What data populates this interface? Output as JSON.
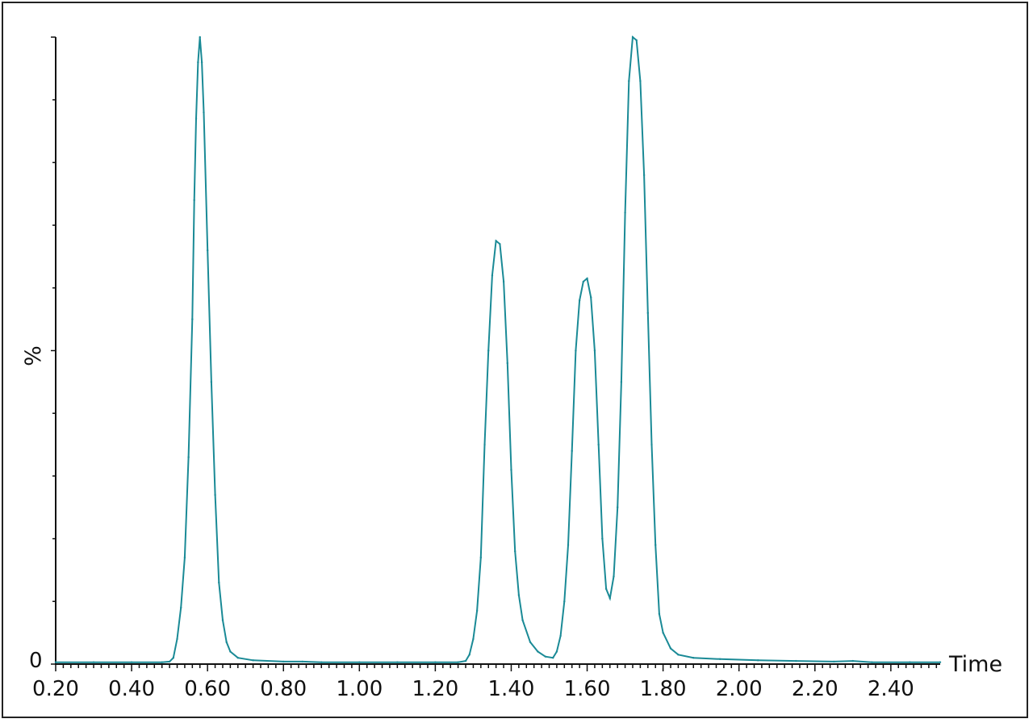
{
  "chart_data": {
    "type": "line",
    "title": "",
    "xlabel": "Time",
    "ylabel": "%",
    "y_zero_label": "0",
    "xlim": [
      0.2,
      2.53
    ],
    "ylim": [
      0,
      100
    ],
    "x_ticks": [
      "0.20",
      "0.40",
      "0.60",
      "0.80",
      "1.00",
      "1.20",
      "1.40",
      "1.60",
      "1.80",
      "2.00",
      "2.20",
      "2.40"
    ],
    "x_tick_values": [
      0.2,
      0.4,
      0.6,
      0.8,
      1.0,
      1.2,
      1.4,
      1.6,
      1.8,
      2.0,
      2.2,
      2.4
    ],
    "grid": false,
    "colors": {
      "line": "#1a8a96",
      "axis": "#111111"
    },
    "series": [
      {
        "values": [
          [
            0.2,
            0.3
          ],
          [
            0.3,
            0.3
          ],
          [
            0.4,
            0.3
          ],
          [
            0.48,
            0.3
          ],
          [
            0.5,
            0.4
          ],
          [
            0.51,
            1.0
          ],
          [
            0.52,
            4.0
          ],
          [
            0.53,
            9.0
          ],
          [
            0.54,
            17.0
          ],
          [
            0.55,
            33.0
          ],
          [
            0.56,
            55.0
          ],
          [
            0.565,
            74.0
          ],
          [
            0.57,
            87.0
          ],
          [
            0.575,
            96.0
          ],
          [
            0.58,
            100.0
          ],
          [
            0.585,
            96.0
          ],
          [
            0.59,
            88.0
          ],
          [
            0.6,
            66.0
          ],
          [
            0.61,
            45.0
          ],
          [
            0.62,
            27.0
          ],
          [
            0.63,
            13.0
          ],
          [
            0.64,
            7.0
          ],
          [
            0.65,
            3.5
          ],
          [
            0.66,
            2.0
          ],
          [
            0.68,
            1.0
          ],
          [
            0.72,
            0.6
          ],
          [
            0.8,
            0.4
          ],
          [
            0.85,
            0.4
          ],
          [
            0.9,
            0.3
          ],
          [
            1.0,
            0.3
          ],
          [
            1.1,
            0.3
          ],
          [
            1.2,
            0.3
          ],
          [
            1.26,
            0.3
          ],
          [
            1.28,
            0.5
          ],
          [
            1.29,
            1.5
          ],
          [
            1.3,
            4.0
          ],
          [
            1.31,
            8.5
          ],
          [
            1.32,
            17.0
          ],
          [
            1.33,
            35.0
          ],
          [
            1.34,
            50.0
          ],
          [
            1.35,
            62.0
          ],
          [
            1.36,
            67.5
          ],
          [
            1.37,
            67.0
          ],
          [
            1.38,
            61.0
          ],
          [
            1.39,
            48.0
          ],
          [
            1.4,
            31.0
          ],
          [
            1.41,
            18.0
          ],
          [
            1.42,
            11.0
          ],
          [
            1.43,
            7.0
          ],
          [
            1.45,
            3.5
          ],
          [
            1.47,
            2.0
          ],
          [
            1.49,
            1.2
          ],
          [
            1.51,
            1.0
          ],
          [
            1.52,
            2.0
          ],
          [
            1.53,
            4.5
          ],
          [
            1.54,
            10.0
          ],
          [
            1.55,
            19.0
          ],
          [
            1.56,
            34.0
          ],
          [
            1.57,
            50.0
          ],
          [
            1.58,
            58.0
          ],
          [
            1.59,
            61.0
          ],
          [
            1.6,
            61.5
          ],
          [
            1.61,
            58.5
          ],
          [
            1.62,
            50.0
          ],
          [
            1.63,
            35.0
          ],
          [
            1.64,
            20.0
          ],
          [
            1.65,
            12.0
          ],
          [
            1.66,
            10.5
          ],
          [
            1.67,
            14.0
          ],
          [
            1.68,
            25.0
          ],
          [
            1.69,
            45.0
          ],
          [
            1.7,
            72.0
          ],
          [
            1.71,
            93.0
          ],
          [
            1.72,
            100.0
          ],
          [
            1.73,
            99.5
          ],
          [
            1.74,
            93.0
          ],
          [
            1.75,
            78.0
          ],
          [
            1.76,
            56.0
          ],
          [
            1.77,
            35.0
          ],
          [
            1.78,
            19.0
          ],
          [
            1.79,
            8.0
          ],
          [
            1.8,
            5.0
          ],
          [
            1.82,
            2.5
          ],
          [
            1.84,
            1.5
          ],
          [
            1.88,
            1.0
          ],
          [
            1.95,
            0.8
          ],
          [
            2.05,
            0.6
          ],
          [
            2.15,
            0.5
          ],
          [
            2.25,
            0.4
          ],
          [
            2.3,
            0.5
          ],
          [
            2.35,
            0.3
          ],
          [
            2.45,
            0.3
          ],
          [
            2.53,
            0.3
          ]
        ]
      }
    ]
  }
}
